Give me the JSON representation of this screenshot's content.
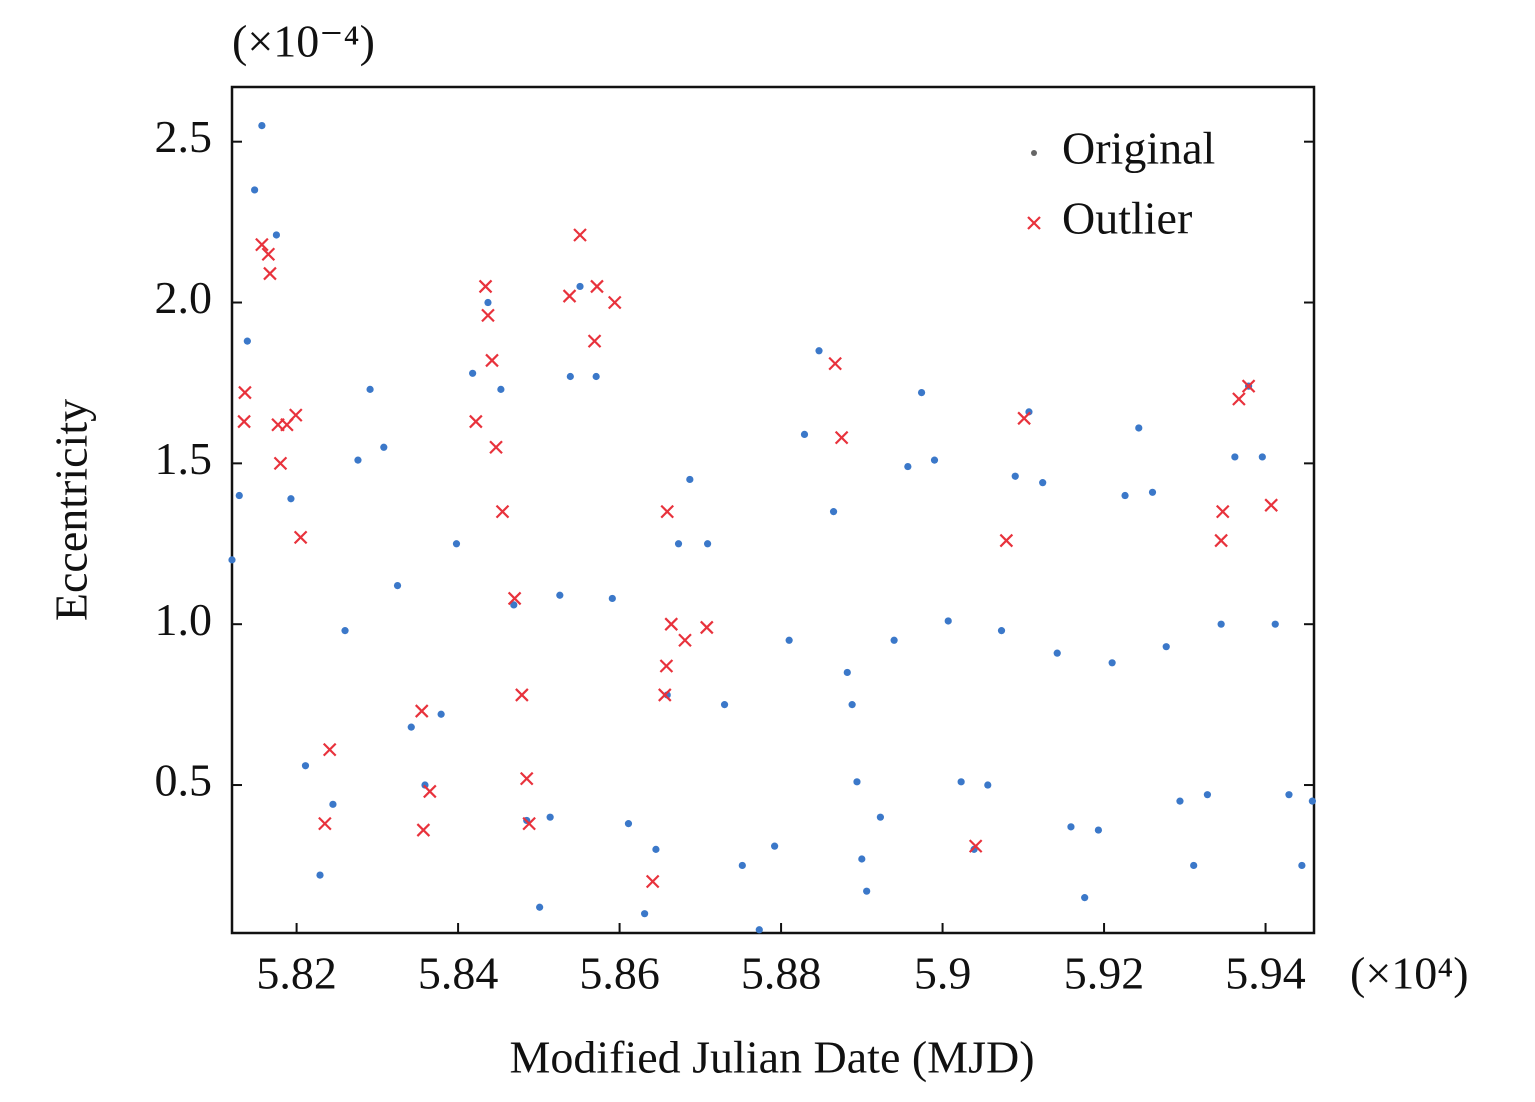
{
  "chart_data": {
    "type": "scatter",
    "x_label": "Modified Julian Date (MJD)",
    "y_label": "Eccentricity",
    "x_unit_label": "(×10⁴)",
    "y_unit_label": "(×10⁻⁴)",
    "xlim": [
      5.812,
      5.946
    ],
    "ylim": [
      0.04,
      2.67
    ],
    "xticks": [
      5.82,
      5.84,
      5.86,
      5.88,
      5.9,
      5.92,
      5.94
    ],
    "yticks": [
      0.5,
      {
        "value": 1,
        "label": "1.0"
      },
      1.5,
      {
        "value": 2,
        "label": "2.0"
      },
      2.5
    ],
    "legend": "upper right",
    "series": [
      {
        "name": "Original",
        "color": "#3b78c9",
        "marker": "dot",
        "x": [
          5.812,
          5.8129,
          5.8139,
          5.8148,
          5.8157,
          5.8175,
          5.8193,
          5.8211,
          5.8229,
          5.8245,
          5.826,
          5.8276,
          5.8291,
          5.8308,
          5.8325,
          5.8342,
          5.8359,
          5.8379,
          5.8398,
          5.8418,
          5.8437,
          5.8453,
          5.8469,
          5.8485,
          5.8501,
          5.8514,
          5.8526,
          5.8539,
          5.8551,
          5.8571,
          5.8591,
          5.8611,
          5.8631,
          5.8645,
          5.8659,
          5.8673,
          5.8687,
          5.8709,
          5.873,
          5.8752,
          5.8773,
          5.8792,
          5.881,
          5.8829,
          5.8847,
          5.8865,
          5.8882,
          5.8888,
          5.8894,
          5.89,
          5.8906,
          5.8923,
          5.894,
          5.8957,
          5.8974,
          5.899,
          5.9007,
          5.9023,
          5.9039,
          5.9056,
          5.9073,
          5.909,
          5.9107,
          5.9124,
          5.9142,
          5.9159,
          5.9176,
          5.9193,
          5.921,
          5.9226,
          5.9243,
          5.926,
          5.9277,
          5.9294,
          5.9311,
          5.9328,
          5.9345,
          5.9362,
          5.9379,
          5.9396,
          5.9412,
          5.9429,
          5.9445,
          5.9458
        ],
        "values": [
          1.2,
          1.4,
          1.88,
          2.35,
          2.55,
          2.21,
          1.39,
          0.56,
          0.22,
          0.44,
          0.98,
          1.51,
          1.73,
          1.55,
          1.12,
          0.68,
          0.5,
          0.72,
          1.25,
          1.78,
          2.0,
          1.73,
          1.06,
          0.39,
          0.12,
          0.4,
          1.09,
          1.77,
          2.05,
          1.77,
          1.08,
          0.38,
          0.1,
          0.3,
          0.78,
          1.25,
          1.45,
          1.25,
          0.75,
          0.25,
          0.05,
          0.31,
          0.95,
          1.59,
          1.85,
          1.35,
          0.85,
          0.75,
          0.51,
          0.27,
          0.17,
          0.4,
          0.95,
          1.49,
          1.72,
          1.51,
          1.01,
          0.51,
          0.3,
          0.5,
          0.98,
          1.46,
          1.66,
          1.44,
          0.91,
          0.37,
          0.15,
          0.36,
          0.88,
          1.4,
          1.61,
          1.41,
          0.93,
          0.45,
          0.25,
          0.47,
          1.0,
          1.52,
          1.74,
          1.52,
          1.0,
          0.47,
          0.25,
          0.45
        ]
      },
      {
        "name": "Outlier",
        "color": "#e8323c",
        "marker": "x",
        "x": [
          5.8136,
          5.8135,
          5.8157,
          5.8165,
          5.8167,
          5.8177,
          5.818,
          5.8188,
          5.8199,
          5.8205,
          5.8235,
          5.8241,
          5.8355,
          5.8357,
          5.8365,
          5.8422,
          5.8434,
          5.8437,
          5.8442,
          5.8447,
          5.8455,
          5.847,
          5.8479,
          5.8485,
          5.8488,
          5.8538,
          5.8551,
          5.8569,
          5.8572,
          5.8594,
          5.8641,
          5.8656,
          5.8658,
          5.8659,
          5.8664,
          5.8681,
          5.8708,
          5.8867,
          5.8875,
          5.9041,
          5.9079,
          5.9101,
          5.9345,
          5.9347,
          5.9367,
          5.9379,
          5.9407
        ],
        "values": [
          1.72,
          1.63,
          2.18,
          2.15,
          2.09,
          1.62,
          1.5,
          1.62,
          1.65,
          1.27,
          0.38,
          0.61,
          0.73,
          0.36,
          0.48,
          1.63,
          2.05,
          1.96,
          1.82,
          1.55,
          1.35,
          1.08,
          0.78,
          0.52,
          0.38,
          2.02,
          2.21,
          1.88,
          2.05,
          2.0,
          0.2,
          0.78,
          0.87,
          1.35,
          1.0,
          0.95,
          0.99,
          1.81,
          1.58,
          0.31,
          1.26,
          1.64,
          1.26,
          1.35,
          1.7,
          1.74,
          1.37
        ]
      }
    ]
  }
}
